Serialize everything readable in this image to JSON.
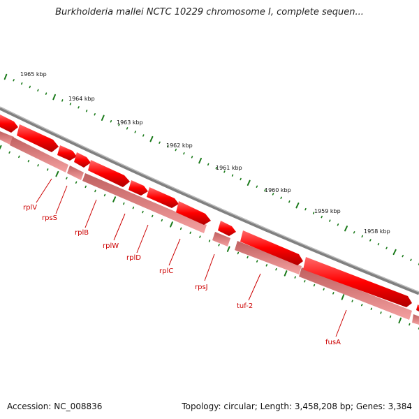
{
  "header": {
    "title": "Burkholderia mallei NCTC 10229 chromosome I, complete sequen..."
  },
  "footer": {
    "accession": "Accession: NC_008836",
    "stats": "Topology: circular; Length: 3,458,208 bp; Genes: 3,384"
  },
  "scale": {
    "labels": [
      "1965 kbp",
      "1964 kbp",
      "1963 kbp",
      "1962 kbp",
      "1961 kbp",
      "1960 kbp",
      "1959 kbp",
      "1958 kbp"
    ]
  },
  "genes": [
    {
      "name": "rplV"
    },
    {
      "name": "rpsS"
    },
    {
      "name": "rplB"
    },
    {
      "name": "rplW"
    },
    {
      "name": "rplD"
    },
    {
      "name": "rplC"
    },
    {
      "name": "rpsJ"
    },
    {
      "name": "tuf-2"
    },
    {
      "name": "fusA"
    }
  ],
  "colors": {
    "forward_gene": "#ff0000",
    "gene_shadow": "#f08080",
    "backbone": "#808080",
    "tick": "#1a7a1a",
    "label": "#cc0000"
  }
}
